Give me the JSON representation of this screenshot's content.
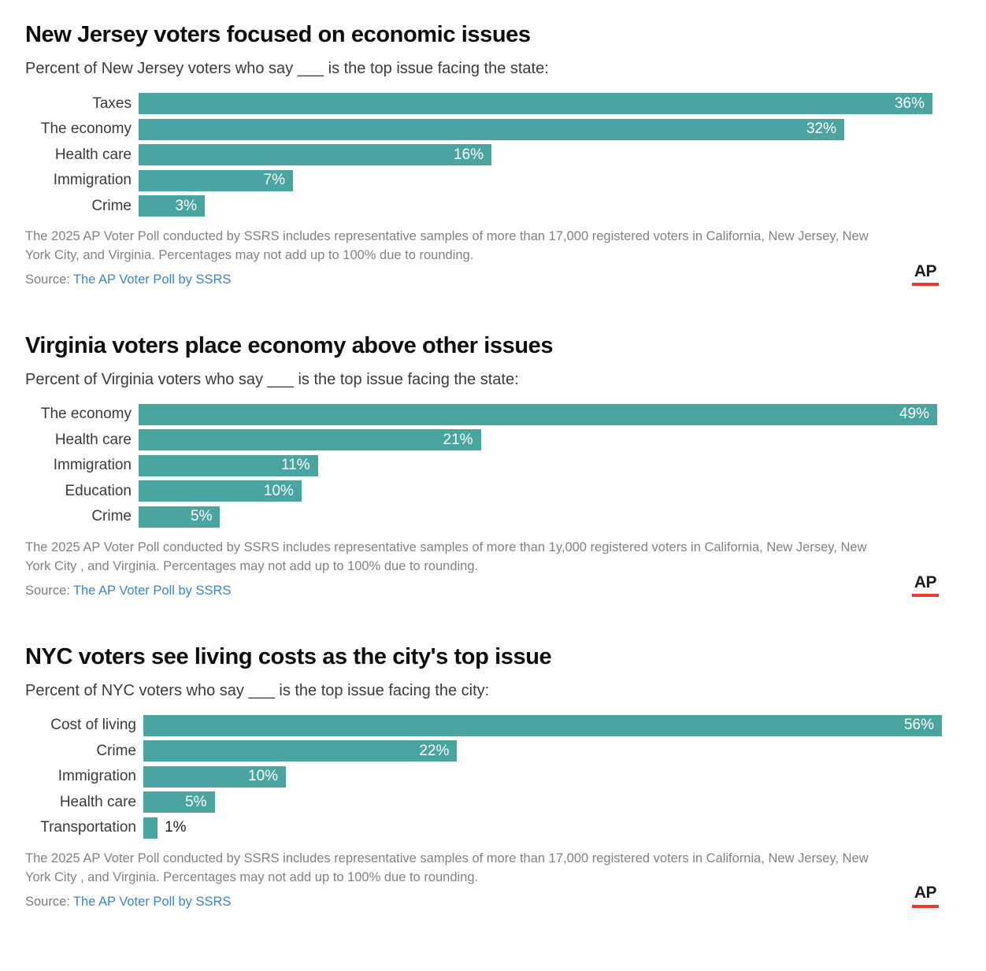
{
  "chart_data": [
    {
      "type": "bar",
      "orientation": "horizontal",
      "title": "New Jersey voters focused on economic issues",
      "subtitle": "Percent of New Jersey voters who say ___ is the top issue facing the state:",
      "categories": [
        "Taxes",
        "The economy",
        "Health care",
        "Immigration",
        "Crime"
      ],
      "values": [
        36,
        32,
        16,
        7,
        3
      ],
      "value_labels": [
        "36%",
        "32%",
        "16%",
        "7%",
        "3%"
      ],
      "unit": "%",
      "xlim": [
        0,
        36
      ],
      "grid": false,
      "legend": false,
      "bar_color": "#4aa49f",
      "note": "The 2025 AP Voter Poll conducted by SSRS includes representative samples of more than 17,000 registered voters in California, New Jersey, New York City, and Virginia. Percentages may not add up to 100% due to rounding.",
      "source_prefix": "Source:",
      "source_link": "The AP Voter Poll by SSRS",
      "logo_text": "AP"
    },
    {
      "type": "bar",
      "orientation": "horizontal",
      "title": "Virginia voters place economy above other issues",
      "subtitle": "Percent of Virginia voters who say ___ is the top issue facing the state:",
      "categories": [
        "The economy",
        "Health care",
        "Immigration",
        "Education",
        "Crime"
      ],
      "values": [
        49,
        21,
        11,
        10,
        5
      ],
      "value_labels": [
        "49%",
        "21%",
        "11%",
        "10%",
        "5%"
      ],
      "unit": "%",
      "xlim": [
        0,
        49
      ],
      "grid": false,
      "legend": false,
      "bar_color": "#4aa49f",
      "note": "The 2025 AP Voter Poll conducted by SSRS includes representative samples of more than 1y,000 registered voters in California, New Jersey, New York City , and Virginia. Percentages may not add up to 100% due to rounding.",
      "source_prefix": "Source:",
      "source_link": "The AP Voter Poll by SSRS",
      "logo_text": "AP"
    },
    {
      "type": "bar",
      "orientation": "horizontal",
      "title": "NYC voters see living costs as the city's top issue",
      "subtitle": "Percent of NYC voters who say ___ is the top issue facing the city:",
      "categories": [
        "Cost of living",
        "Crime",
        "Immigration",
        "Health care",
        "Transportation"
      ],
      "values": [
        56,
        22,
        10,
        5,
        1
      ],
      "value_labels": [
        "56%",
        "22%",
        "10%",
        "5%",
        "1%"
      ],
      "unit": "%",
      "xlim": [
        0,
        56
      ],
      "grid": false,
      "legend": false,
      "bar_color": "#4aa49f",
      "note": "The 2025 AP Voter Poll conducted by SSRS includes representative samples of more than 17,000 registered voters in California, New Jersey, New York City , and Virginia. Percentages may not add up to 100% due to rounding.",
      "source_prefix": "Source:",
      "source_link": "The AP Voter Poll by SSRS",
      "logo_text": "AP"
    }
  ]
}
